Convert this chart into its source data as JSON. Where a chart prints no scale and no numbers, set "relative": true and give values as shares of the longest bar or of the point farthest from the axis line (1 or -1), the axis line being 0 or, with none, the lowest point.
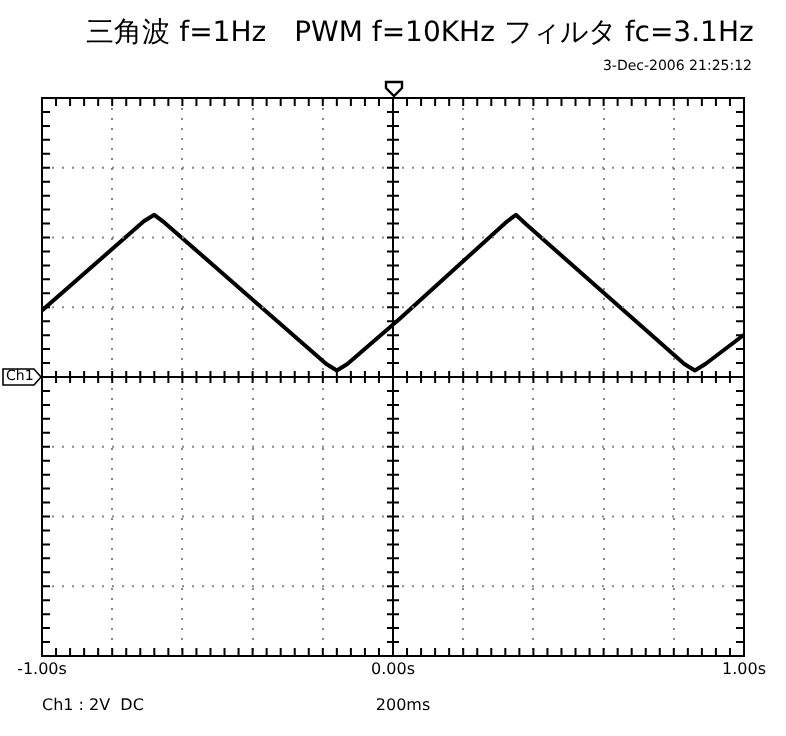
{
  "chart_data": {
    "type": "line",
    "title": "三角波 f=1Hz　PWM f=10KHz フィルタ fc=3.1Hz",
    "relative": true,
    "x": [
      -1.0,
      -0.71,
      -0.68,
      -0.65,
      -0.19,
      -0.16,
      -0.13,
      0.02,
      0.32,
      0.35,
      0.38,
      0.83,
      0.86,
      0.89,
      1.0
    ],
    "series": [
      {
        "color": "#000000",
        "values": [
          0.41,
          0.96,
          1,
          0.95,
          0.08,
          0.04,
          0.08,
          0.36,
          0.95,
          1,
          0.94,
          0.08,
          0.04,
          0.08,
          0.26
        ]
      }
    ],
    "xlim": [
      -1.0,
      1.0
    ],
    "xticks": [
      {
        "value": -1.0,
        "label": "-1.00s"
      },
      {
        "value": -0.8,
        "label": null
      },
      {
        "value": -0.6,
        "label": null
      },
      {
        "value": -0.4,
        "label": null
      },
      {
        "value": -0.2,
        "label": null
      },
      {
        "value": 0,
        "label": "0.00s"
      },
      {
        "value": 0.2,
        "label": null
      },
      {
        "value": 0.4,
        "label": null
      },
      {
        "value": 0.6,
        "label": null
      },
      {
        "value": 0.8,
        "label": null
      },
      {
        "value": 1.0,
        "label": "1.00s"
      }
    ],
    "annotations": [
      "3-Dec-2006 21:25:12",
      "Ch1 : 2V  DC",
      "200ms",
      "Ch1"
    ],
    "grid": true,
    "legend": false,
    "marker": "none",
    "line_style": "solid"
  }
}
